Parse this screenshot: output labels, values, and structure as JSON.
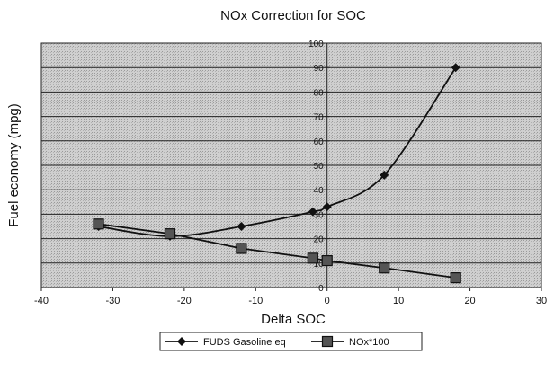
{
  "chart_data": {
    "type": "line",
    "title": "NOx Correction for SOC",
    "xlabel": "Delta SOC",
    "ylabel": "Fuel economy (mpg)",
    "xlim": [
      -40,
      30
    ],
    "ylim": [
      0,
      100
    ],
    "xticks": [
      "-40",
      "-30",
      "-20",
      "-10",
      "0",
      "10",
      "20",
      "30"
    ],
    "yticks": [
      "0",
      "10",
      "20",
      "30",
      "40",
      "50",
      "60",
      "70",
      "80",
      "90",
      "100"
    ],
    "grid": true,
    "legend_position": "bottom",
    "series": [
      {
        "name": "FUDS Gasoline eq",
        "marker": "diamond",
        "color": "#111111",
        "points": [
          [
            -32,
            25
          ],
          [
            -22,
            21
          ],
          [
            -12,
            25
          ],
          [
            -2,
            31
          ],
          [
            0,
            33
          ],
          [
            8,
            46
          ],
          [
            18,
            90
          ]
        ]
      },
      {
        "name": "NOx*100",
        "marker": "square",
        "color": "#111111",
        "points": [
          [
            -32,
            26
          ],
          [
            -22,
            22
          ],
          [
            -12,
            16
          ],
          [
            -2,
            12
          ],
          [
            0,
            11
          ],
          [
            8,
            8
          ],
          [
            18,
            4
          ]
        ]
      }
    ],
    "plot_background": "#c8c8c8",
    "gridline_color": "#222222"
  }
}
